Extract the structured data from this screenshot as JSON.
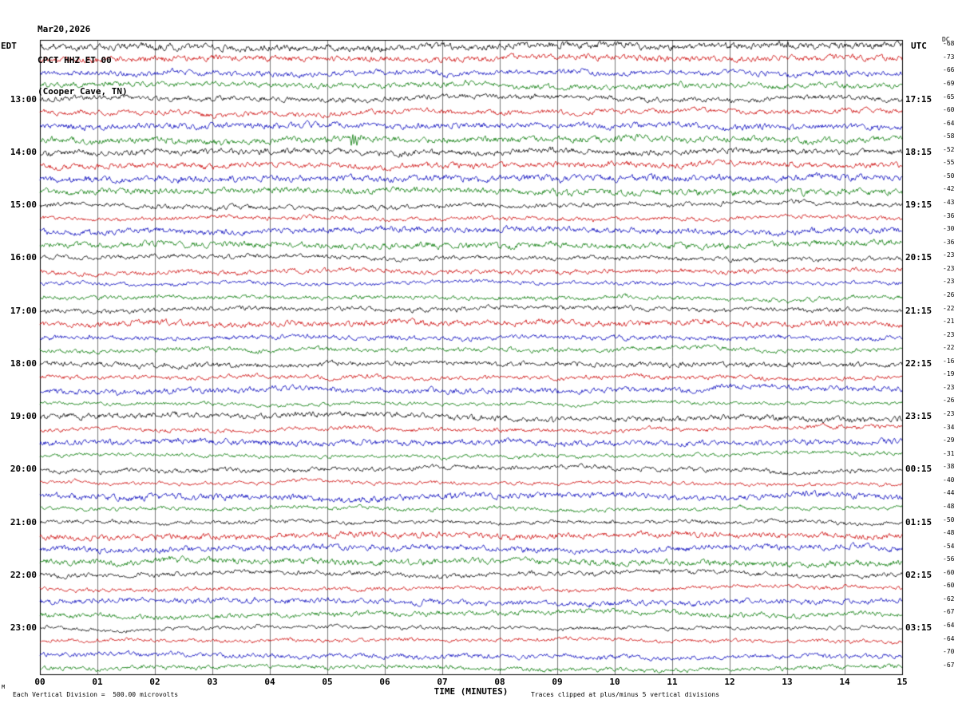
{
  "header": {
    "date": "Mar20,2026",
    "station": "CPCT HHZ ET 00",
    "location": "(Cooper Cave, TN)"
  },
  "left_axis": {
    "title": "EDT",
    "labels": [
      {
        "row": 4,
        "text": "13:00"
      },
      {
        "row": 8,
        "text": "14:00"
      },
      {
        "row": 12,
        "text": "15:00"
      },
      {
        "row": 16,
        "text": "16:00"
      },
      {
        "row": 20,
        "text": "17:00"
      },
      {
        "row": 24,
        "text": "18:00"
      },
      {
        "row": 28,
        "text": "19:00"
      },
      {
        "row": 32,
        "text": "20:00"
      },
      {
        "row": 36,
        "text": "21:00"
      },
      {
        "row": 40,
        "text": "22:00"
      },
      {
        "row": 44,
        "text": "23:00"
      }
    ]
  },
  "right_axis": {
    "title": "UTC",
    "labels": [
      {
        "row": 4,
        "text": "17:15"
      },
      {
        "row": 8,
        "text": "18:15"
      },
      {
        "row": 12,
        "text": "19:15"
      },
      {
        "row": 16,
        "text": "20:15"
      },
      {
        "row": 20,
        "text": "21:15"
      },
      {
        "row": 24,
        "text": "22:15"
      },
      {
        "row": 28,
        "text": "23:15"
      },
      {
        "row": 32,
        "text": "00:15"
      },
      {
        "row": 36,
        "text": "01:15"
      },
      {
        "row": 40,
        "text": "02:15"
      },
      {
        "row": 44,
        "text": "03:15"
      }
    ]
  },
  "dc_column": {
    "title": "DC",
    "values": [
      "-68",
      "-73",
      "-66",
      "-69",
      "-65",
      "-60",
      "-64",
      "-58",
      "-52",
      "-55",
      "-50",
      "-42",
      "-43",
      "-36",
      "-30",
      "-36",
      "-23",
      "-23",
      "-23",
      "-26",
      "-22",
      "-21",
      "-23",
      "-22",
      "-16",
      "-19",
      "-23",
      "-26",
      "-23",
      "-34",
      "-29",
      "-31",
      "-38",
      "-40",
      "-44",
      "-48",
      "-50",
      "-48",
      "-54",
      "-56",
      "-60",
      "-60",
      "-62",
      "-67",
      "-64",
      "-64",
      "-70",
      "-67"
    ]
  },
  "x_axis": {
    "title": "TIME (MINUTES)",
    "ticks": [
      "00",
      "01",
      "02",
      "03",
      "04",
      "05",
      "06",
      "07",
      "08",
      "09",
      "10",
      "11",
      "12",
      "13",
      "14",
      "15"
    ]
  },
  "footer": {
    "marker": "M",
    "left": "Each Vertical Division =  500.00 microvolts",
    "right": "Traces clipped at plus/minus 5 vertical divisions"
  },
  "chart_data": {
    "type": "line",
    "variant": "helicorder-seismogram",
    "title": "CPCT HHZ ET 00 (Cooper Cave, TN) Mar20,2026",
    "rows": 48,
    "minutes_per_row": 15,
    "x_range_minutes": [
      0,
      15
    ],
    "row_colors_cycle": [
      "#000000",
      "#cc0000",
      "#0000bb",
      "#007700"
    ],
    "first_row_unlabeled": true,
    "label_every_n_rows": 4,
    "first_labeled_row_edt": "13:00",
    "first_labeled_row_utc": "17:15",
    "vertical_division_microvolts": 500.0,
    "clip_divisions": 5,
    "content": "ambient seismic background noise wiggle traces on all 48 rows, grid line each minute",
    "event": {
      "row_index": 7,
      "minute": 5.4,
      "color": "#007700",
      "description": "brief high-amplitude spike on the green trace just above the 14:00 row"
    }
  }
}
